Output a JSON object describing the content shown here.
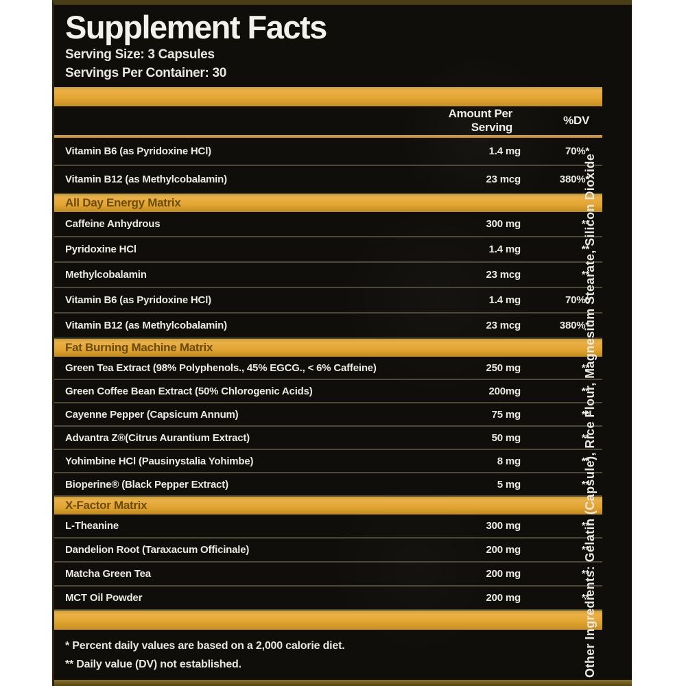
{
  "header": {
    "title": "Supplement Facts",
    "serving_size": "Serving Size: 3 Capsules",
    "servings_per_container": "Servings Per Container: 30"
  },
  "columns": {
    "amount": "Amount Per Serving",
    "dv": "%DV"
  },
  "sections": [
    {
      "title": "",
      "rows": [
        {
          "name": "Vitamin B6 (as Pyridoxine HCl)",
          "amount": "1.4 mg",
          "dv": "70%*"
        },
        {
          "name": "Vitamin B12 (as Methylcobalamin)",
          "amount": "23 mcg",
          "dv": "380%*"
        }
      ]
    },
    {
      "title": "All Day Energy Matrix",
      "rows": [
        {
          "name": "Caffeine Anhydrous",
          "amount": "300 mg",
          "dv": "**"
        },
        {
          "name": "Pyridoxine HCl",
          "amount": "1.4 mg",
          "dv": "**"
        },
        {
          "name": "Methylcobalamin",
          "amount": "23 mcg",
          "dv": "**"
        },
        {
          "name": "Vitamin B6 (as Pyridoxine HCl)",
          "amount": "1.4 mg",
          "dv": "70%*"
        },
        {
          "name": "Vitamin B12 (as Methylcobalamin)",
          "amount": "23 mcg",
          "dv": "380%*"
        }
      ]
    },
    {
      "title": "Fat Burning Machine Matrix",
      "rows": [
        {
          "name": "Green Tea Extract (98% Polyphenols., 45% EGCG., < 6% Caffeine)",
          "amount": "250 mg",
          "dv": "**"
        },
        {
          "name": "Green Coffee Bean Extract (50% Chlorogenic Acids)",
          "amount": "200mg",
          "dv": "**"
        },
        {
          "name": "Cayenne Pepper (Capsicum Annum)",
          "amount": "75 mg",
          "dv": "**"
        },
        {
          "name": "Advantra Z®(Citrus Aurantium Extract)",
          "amount": "50 mg",
          "dv": "**"
        },
        {
          "name": "Yohimbine HCl (Pausinystalia Yohimbe)",
          "amount": "8 mg",
          "dv": "**"
        },
        {
          "name": "Bioperine® (Black Pepper Extract)",
          "amount": "5 mg",
          "dv": "**"
        }
      ]
    },
    {
      "title": "X-Factor Matrix",
      "rows": [
        {
          "name": "L-Theanine",
          "amount": "300 mg",
          "dv": "**"
        },
        {
          "name": "Dandelion Root (Taraxacum Officinale)",
          "amount": "200 mg",
          "dv": "**"
        },
        {
          "name": "Matcha Green Tea",
          "amount": "200 mg",
          "dv": "**"
        },
        {
          "name": "MCT Oil Powder",
          "amount": "200 mg",
          "dv": "**"
        }
      ]
    }
  ],
  "footnotes": [
    "* Percent daily values are based on a 2,000 calorie diet.",
    "** Daily value (DV) not established."
  ],
  "other_ingredients": "Other Ingredients: Gelatin (Capsule), Rice Flour, Magnesium Stearate, Silicon Dioxide",
  "colors": {
    "gold": "#E2A532",
    "label_background": "#100E0A",
    "text": "#ECEAE4",
    "section_title_text": "#6B4C06"
  }
}
